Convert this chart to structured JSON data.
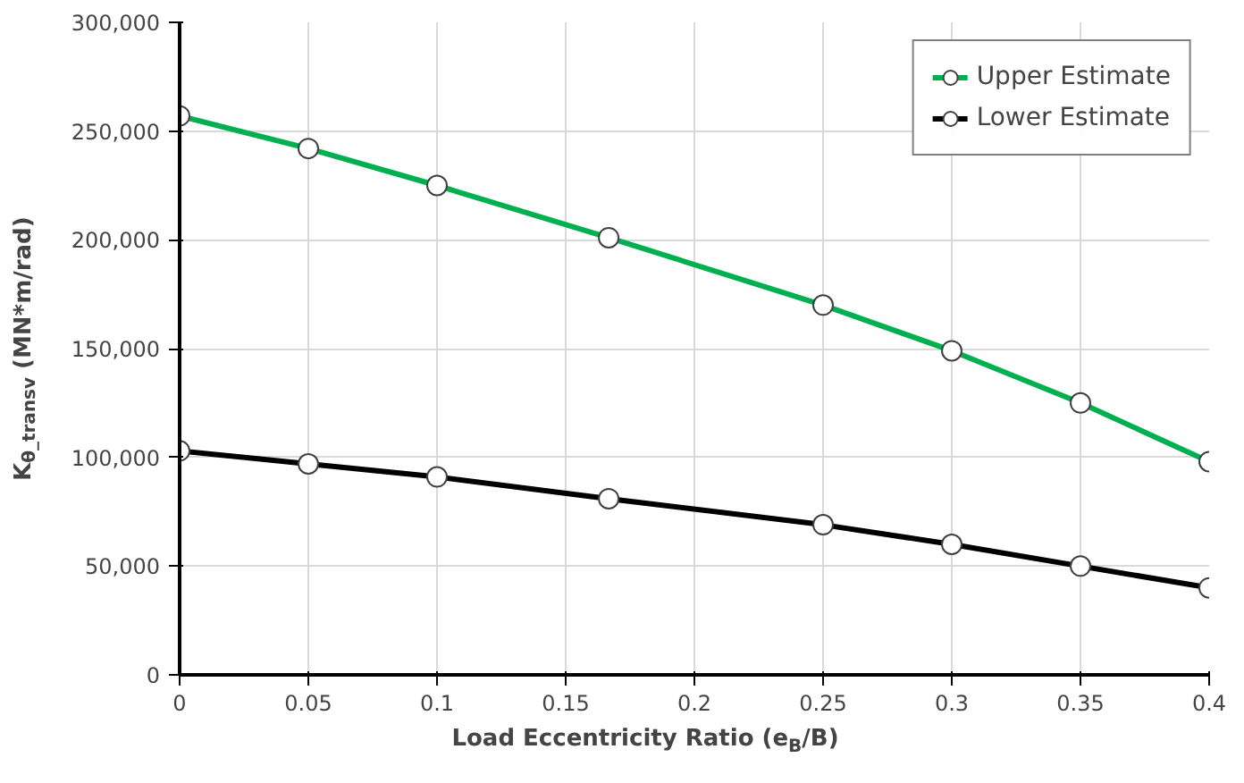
{
  "chart_data": {
    "type": "line",
    "xlabel": "Load Eccentricity Ratio (e$_{B}$/B)",
    "ylabel": "K$_{θ_transv}$ (MN*m/rad)",
    "x": [
      0,
      0.05,
      0.1,
      0.1667,
      0.25,
      0.3,
      0.35,
      0.4
    ],
    "series": [
      {
        "name": "Upper Estimate",
        "color": "#00b050",
        "values": [
          257000,
          242000,
          225000,
          201000,
          170000,
          149000,
          125000,
          98000
        ]
      },
      {
        "name": "Lower Estimate",
        "color": "#000000",
        "values": [
          103000,
          97000,
          91000,
          81000,
          69000,
          60000,
          50000,
          40000
        ]
      }
    ],
    "xlim": [
      0,
      0.4
    ],
    "ylim": [
      0,
      300000
    ],
    "xticks": [
      0,
      0.05,
      0.1,
      0.15,
      0.2,
      0.25,
      0.3,
      0.35,
      0.4
    ],
    "yticks": [
      {
        "value": 0,
        "label": "0"
      },
      {
        "value": 50000,
        "label": "50,000"
      },
      {
        "value": 100000,
        "label": "100,000"
      },
      {
        "value": 150000,
        "label": "150,000"
      },
      {
        "value": 200000,
        "label": "200,000"
      },
      {
        "value": 250000,
        "label": "250,000"
      },
      {
        "value": 300000,
        "label": "300,000"
      }
    ],
    "grid": true,
    "legend": "top right",
    "marker": "circle",
    "line_style": "solid"
  }
}
